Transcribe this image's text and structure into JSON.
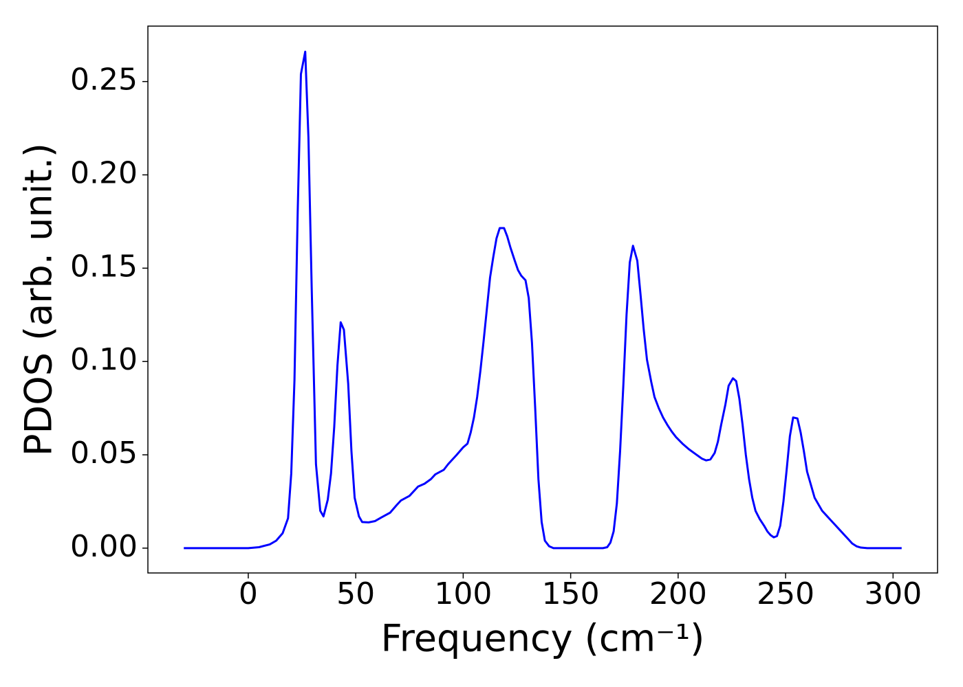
{
  "chart_data": {
    "type": "line",
    "xlabel": "Frequency (cm⁻¹)",
    "ylabel": "PDOS (arb. unit.)",
    "xlim": [
      -46.7,
      320.7
    ],
    "ylim": [
      -0.0133,
      0.2797
    ],
    "xticks": [
      0,
      50,
      100,
      150,
      200,
      250,
      300
    ],
    "yticks": [
      {
        "value": 0,
        "label": "0.00"
      },
      {
        "value": 0.05,
        "label": "0.05"
      },
      {
        "value": 0.1,
        "label": "0.10"
      },
      {
        "value": 0.15,
        "label": "0.15"
      },
      {
        "value": 0.2,
        "label": "0.20"
      },
      {
        "value": 0.25,
        "label": "0.25"
      }
    ],
    "grid": false,
    "series": [
      {
        "name": "PDOS",
        "color": "#0000ff",
        "x": [
          -30,
          0,
          5,
          10,
          13,
          16,
          18.5,
          20,
          21.5,
          23,
          24.5,
          26.5,
          28,
          29.5,
          31.5,
          33.5,
          35,
          37,
          38.5,
          40,
          41.5,
          43,
          44.5,
          46.5,
          48,
          49.5,
          51.5,
          53,
          56,
          59,
          62,
          66,
          69,
          71,
          75,
          79,
          82,
          85,
          87,
          91,
          93,
          97,
          100,
          102,
          103.5,
          105,
          106.5,
          108,
          109.5,
          111,
          112.5,
          114,
          115.5,
          117,
          119,
          120.5,
          122,
          124,
          125.5,
          127,
          129,
          130.5,
          132,
          133.5,
          135,
          136.5,
          138,
          140,
          142,
          165,
          167,
          168.5,
          170,
          171.5,
          173,
          174.5,
          176,
          177.5,
          179,
          181,
          182.5,
          184,
          185.5,
          187.5,
          189,
          191,
          193,
          195,
          197,
          199,
          202,
          205,
          208,
          211,
          213,
          215,
          217,
          218.5,
          220,
          222,
          223.5,
          225.5,
          227,
          228.5,
          230,
          231.5,
          233,
          234.5,
          236,
          238,
          240,
          241.5,
          243,
          244.5,
          246,
          247.5,
          249,
          250.5,
          252,
          253.5,
          255.5,
          257,
          258.5,
          260,
          262,
          263.5,
          265.5,
          267,
          269,
          271,
          273,
          275,
          277,
          279,
          281,
          283,
          285,
          288,
          304
        ],
        "values": [
          0,
          0,
          0.0005,
          0.002,
          0.004,
          0.008,
          0.016,
          0.04,
          0.09,
          0.18,
          0.254,
          0.266,
          0.22,
          0.14,
          0.045,
          0.02,
          0.017,
          0.026,
          0.04,
          0.065,
          0.098,
          0.121,
          0.117,
          0.088,
          0.052,
          0.027,
          0.017,
          0.014,
          0.0138,
          0.0145,
          0.0165,
          0.019,
          0.023,
          0.0255,
          0.028,
          0.033,
          0.0345,
          0.037,
          0.0395,
          0.042,
          0.045,
          0.05,
          0.054,
          0.056,
          0.062,
          0.07,
          0.081,
          0.095,
          0.111,
          0.128,
          0.145,
          0.156,
          0.166,
          0.1715,
          0.1715,
          0.167,
          0.161,
          0.154,
          0.149,
          0.146,
          0.1435,
          0.134,
          0.11,
          0.075,
          0.037,
          0.014,
          0.004,
          0.001,
          0,
          0,
          0.0005,
          0.003,
          0.009,
          0.024,
          0.052,
          0.087,
          0.125,
          0.153,
          0.162,
          0.154,
          0.136,
          0.117,
          0.101,
          0.089,
          0.081,
          0.075,
          0.07,
          0.066,
          0.0625,
          0.0595,
          0.056,
          0.053,
          0.0505,
          0.048,
          0.047,
          0.0475,
          0.051,
          0.057,
          0.066,
          0.077,
          0.087,
          0.091,
          0.0895,
          0.08,
          0.066,
          0.05,
          0.037,
          0.027,
          0.02,
          0.0155,
          0.012,
          0.009,
          0.007,
          0.0058,
          0.0065,
          0.012,
          0.025,
          0.042,
          0.06,
          0.07,
          0.0695,
          0.062,
          0.052,
          0.041,
          0.033,
          0.027,
          0.023,
          0.02,
          0.0175,
          0.015,
          0.0125,
          0.01,
          0.0075,
          0.005,
          0.0025,
          0.001,
          0.0003,
          0,
          0
        ]
      }
    ]
  }
}
